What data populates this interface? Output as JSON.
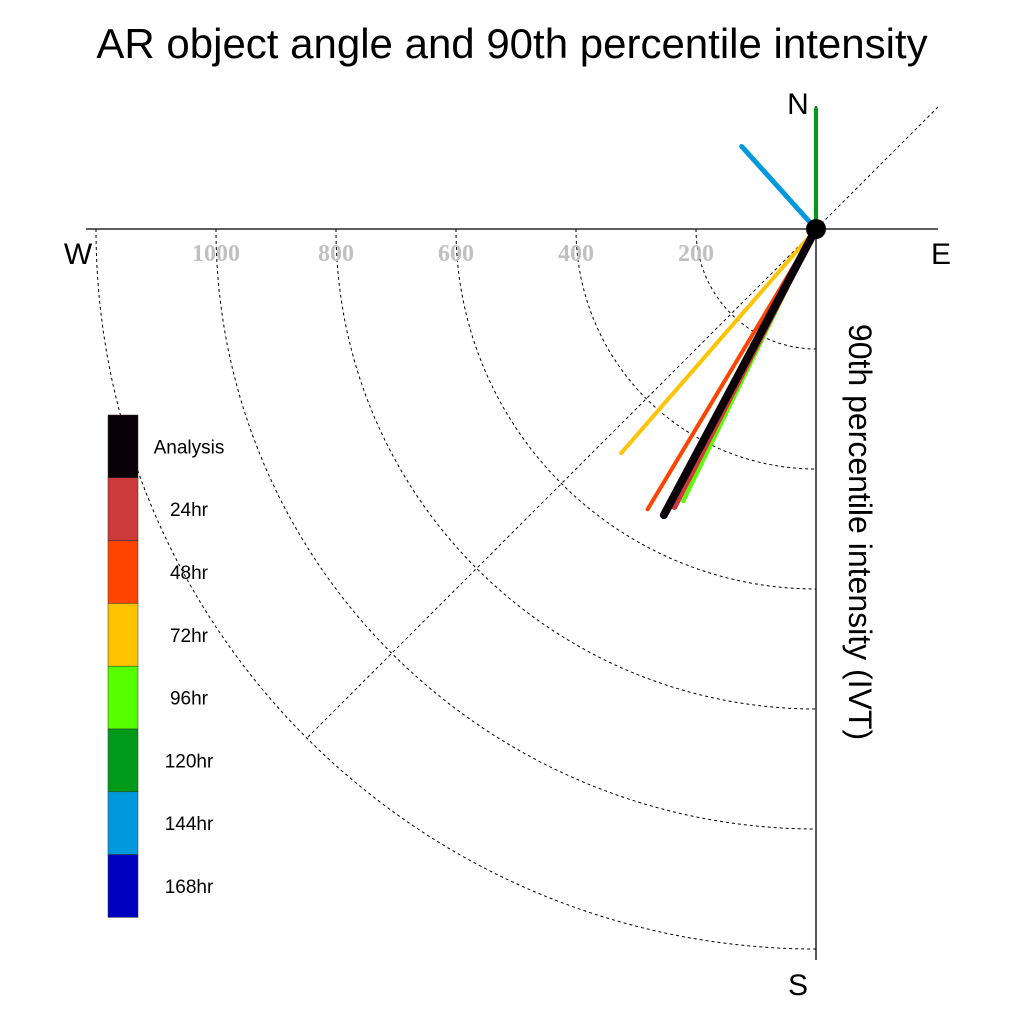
{
  "chart_data": {
    "type": "polar-vector",
    "title": "AR object angle and 90th percentile intensity",
    "radial_label": "90th percentile intensity (IVT)",
    "compass": {
      "north": "N",
      "south": "S",
      "east": "E",
      "west": "W"
    },
    "radial_ticks": [
      200,
      400,
      600,
      800,
      1000
    ],
    "radial_tick_labels": [
      "200",
      "400",
      "600",
      "800",
      "1000"
    ],
    "radial_max": 1200,
    "angle_convention": "degrees clockwise from north (direction of vector from origin)",
    "legend_placement": "left",
    "series": [
      {
        "name": "168hr",
        "color": "#0000c0",
        "angle_deg": 0,
        "intensity": 0,
        "width": 4
      },
      {
        "name": "144hr",
        "color": "#0099dd",
        "angle_deg": 318,
        "intensity": 185,
        "width": 5
      },
      {
        "name": "120hr",
        "color": "#009a1a",
        "angle_deg": 0,
        "intensity": 200,
        "width": 4
      },
      {
        "name": "96hr",
        "color": "#55ff00",
        "angle_deg": 206,
        "intensity": 505,
        "width": 4
      },
      {
        "name": "72hr",
        "color": "#ffc300",
        "angle_deg": 221,
        "intensity": 495,
        "width": 4
      },
      {
        "name": "48hr",
        "color": "#ff4400",
        "angle_deg": 211,
        "intensity": 545,
        "width": 4
      },
      {
        "name": "24hr",
        "color": "#cc3a3a",
        "angle_deg": 207,
        "intensity": 520,
        "width": 6
      },
      {
        "name": "Analysis",
        "color": "#0a0008",
        "angle_deg": 208,
        "intensity": 540,
        "width": 8
      }
    ]
  }
}
